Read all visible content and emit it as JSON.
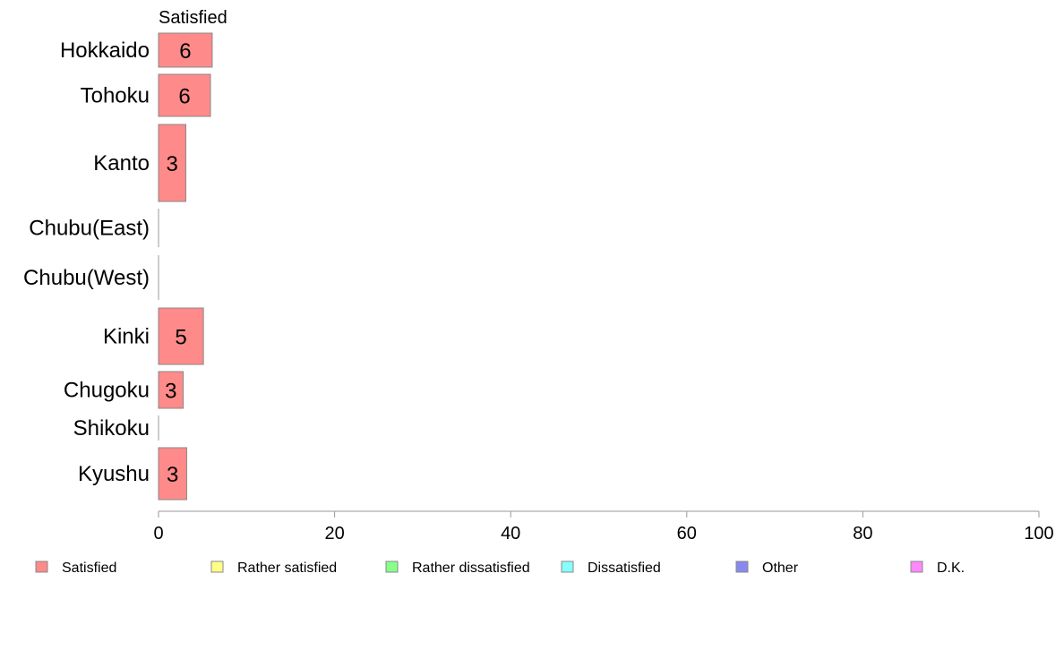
{
  "chart_data": {
    "type": "bar",
    "orientation": "horizontal",
    "stacked": true,
    "header": "Satisfied",
    "categories": [
      "Hokkaido",
      "Tohoku",
      "Kanto",
      "Chubu(East)",
      "Chubu(West)",
      "Kinki",
      "Chugoku",
      "Shikoku",
      "Kyushu"
    ],
    "series": [
      {
        "name": "Satisfied",
        "color": "#ff8a8a",
        "values": [
          6.1,
          5.9,
          3.1,
          0,
          0,
          5.1,
          2.8,
          0,
          3.2
        ],
        "labels": [
          "6",
          "6",
          "3",
          "",
          "",
          "5",
          "3",
          "",
          "3"
        ]
      },
      {
        "name": "Rather satisfied",
        "color": "#ffff88",
        "values": [
          0,
          0,
          0,
          0,
          0,
          0,
          0,
          0,
          0
        ]
      },
      {
        "name": "Rather dissatisfied",
        "color": "#88ff88",
        "values": [
          0,
          0,
          0,
          0,
          0,
          0,
          0,
          0,
          0
        ]
      },
      {
        "name": "Dissatisfied",
        "color": "#88ffff",
        "values": [
          0,
          0,
          0,
          0,
          0,
          0,
          0,
          0,
          0
        ]
      },
      {
        "name": "Other",
        "color": "#8888ee",
        "values": [
          0,
          0,
          0,
          0,
          0,
          0,
          0,
          0,
          0
        ]
      },
      {
        "name": "D.K.",
        "color": "#ff88ff",
        "values": [
          0,
          0,
          0,
          0,
          0,
          0,
          0,
          0,
          0
        ]
      }
    ],
    "xlim": [
      0,
      100
    ],
    "xticks": [
      "0",
      "20",
      "40",
      "60",
      "80",
      "100"
    ],
    "grid": false,
    "legend_position": "bottom"
  }
}
